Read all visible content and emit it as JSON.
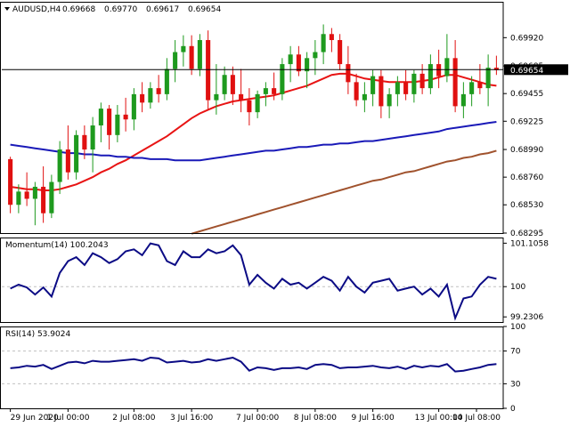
{
  "header": {
    "symbol": "AUDUSD,H4",
    "open": "0.69668",
    "high": "0.69770",
    "low": "0.69617",
    "close": "0.69654"
  },
  "colors": {
    "bull": "#1e9a1e",
    "bear": "#e01010",
    "ma_fast": "#e81414",
    "ma_mid": "#1a1ab8",
    "ma_slow": "#a0522d",
    "oscillator": "#0b0b85",
    "current_price_line": "#000000",
    "grid": "#c0c0c0"
  },
  "chart_data": [
    {
      "type": "candlestick",
      "panel": "price",
      "x_labels": [
        "29 Jun 2020",
        "1 Jul 00:00",
        "2 Jul 08:00",
        "3 Jul 16:00",
        "7 Jul 00:00",
        "8 Jul 08:00",
        "9 Jul 16:00",
        "13 Jul 00:00",
        "14 Jul 08:00"
      ],
      "y_ticks": [
        0.6992,
        0.69685,
        0.69455,
        0.69225,
        0.6899,
        0.6876,
        0.6853,
        0.68295
      ],
      "ylim": [
        0.68295,
        0.701
      ],
      "current_price": 0.69654,
      "current_price_label": "0.69654",
      "ohlc": [
        [
          0.6891,
          0.6893,
          0.6846,
          0.6853
        ],
        [
          0.6853,
          0.687,
          0.6846,
          0.6864
        ],
        [
          0.6864,
          0.688,
          0.6852,
          0.6858
        ],
        [
          0.6858,
          0.6872,
          0.6836,
          0.6868
        ],
        [
          0.6868,
          0.6885,
          0.6838,
          0.6846
        ],
        [
          0.6846,
          0.6878,
          0.6842,
          0.6872
        ],
        [
          0.6872,
          0.6906,
          0.6862,
          0.6899
        ],
        [
          0.6899,
          0.6919,
          0.6874,
          0.688
        ],
        [
          0.688,
          0.6915,
          0.6874,
          0.6911
        ],
        [
          0.6911,
          0.6919,
          0.6891,
          0.6899
        ],
        [
          0.6899,
          0.6926,
          0.688,
          0.6919
        ],
        [
          0.6919,
          0.6938,
          0.6905,
          0.6933
        ],
        [
          0.6933,
          0.6936,
          0.6899,
          0.6911
        ],
        [
          0.6911,
          0.6936,
          0.6905,
          0.6928
        ],
        [
          0.6928,
          0.6942,
          0.6914,
          0.6924
        ],
        [
          0.6924,
          0.695,
          0.6915,
          0.6945
        ],
        [
          0.6945,
          0.6955,
          0.693,
          0.6938
        ],
        [
          0.6938,
          0.6955,
          0.6933,
          0.695
        ],
        [
          0.695,
          0.6961,
          0.6938,
          0.6945
        ],
        [
          0.6945,
          0.6975,
          0.694,
          0.6966
        ],
        [
          0.6966,
          0.699,
          0.6955,
          0.698
        ],
        [
          0.698,
          0.6994,
          0.6968,
          0.6985
        ],
        [
          0.6985,
          0.6994,
          0.6961,
          0.6966
        ],
        [
          0.6966,
          0.6995,
          0.696,
          0.699
        ],
        [
          0.699,
          0.6998,
          0.6932,
          0.694
        ],
        [
          0.694,
          0.697,
          0.6928,
          0.6945
        ],
        [
          0.6945,
          0.6968,
          0.694,
          0.6961
        ],
        [
          0.6961,
          0.6968,
          0.6936,
          0.6945
        ],
        [
          0.6945,
          0.6966,
          0.693,
          0.694
        ],
        [
          0.694,
          0.695,
          0.6919,
          0.693
        ],
        [
          0.693,
          0.6948,
          0.6925,
          0.6945
        ],
        [
          0.6945,
          0.6955,
          0.6935,
          0.695
        ],
        [
          0.695,
          0.6963,
          0.694,
          0.6945
        ],
        [
          0.6945,
          0.6975,
          0.694,
          0.697
        ],
        [
          0.697,
          0.6985,
          0.6955,
          0.6978
        ],
        [
          0.6978,
          0.6985,
          0.696,
          0.6964
        ],
        [
          0.6964,
          0.698,
          0.695,
          0.6975
        ],
        [
          0.6975,
          0.699,
          0.6961,
          0.698
        ],
        [
          0.698,
          0.7003,
          0.697,
          0.6995
        ],
        [
          0.6995,
          0.7,
          0.698,
          0.699
        ],
        [
          0.699,
          0.6995,
          0.6965,
          0.697
        ],
        [
          0.697,
          0.6985,
          0.6945,
          0.6955
        ],
        [
          0.6955,
          0.6962,
          0.6935,
          0.694
        ],
        [
          0.694,
          0.6955,
          0.693,
          0.6945
        ],
        [
          0.6945,
          0.6965,
          0.6935,
          0.696
        ],
        [
          0.696,
          0.6965,
          0.6925,
          0.6935
        ],
        [
          0.6935,
          0.695,
          0.6925,
          0.6945
        ],
        [
          0.6945,
          0.696,
          0.6935,
          0.6955
        ],
        [
          0.6955,
          0.6965,
          0.694,
          0.6945
        ],
        [
          0.6945,
          0.6965,
          0.6938,
          0.6962
        ],
        [
          0.6962,
          0.697,
          0.6945,
          0.695
        ],
        [
          0.695,
          0.6978,
          0.6945,
          0.697
        ],
        [
          0.697,
          0.6982,
          0.695,
          0.696
        ],
        [
          0.696,
          0.6995,
          0.6955,
          0.6975
        ],
        [
          0.6975,
          0.699,
          0.693,
          0.6935
        ],
        [
          0.6935,
          0.6955,
          0.6925,
          0.6945
        ],
        [
          0.6945,
          0.696,
          0.6935,
          0.6955
        ],
        [
          0.6955,
          0.697,
          0.6945,
          0.695
        ],
        [
          0.695,
          0.6978,
          0.6935,
          0.6967
        ],
        [
          0.6967,
          0.6977,
          0.6961,
          0.6965
        ]
      ],
      "series": [
        {
          "color_key": "ma_fast",
          "values": [
            0.6868,
            0.6867,
            0.6866,
            0.6866,
            0.6865,
            0.6865,
            0.6866,
            0.6868,
            0.687,
            0.6873,
            0.6876,
            0.688,
            0.6883,
            0.6887,
            0.689,
            0.6894,
            0.6898,
            0.6902,
            0.6906,
            0.691,
            0.6915,
            0.692,
            0.6925,
            0.6929,
            0.6932,
            0.6935,
            0.6937,
            0.6939,
            0.694,
            0.6941,
            0.6942,
            0.6943,
            0.6944,
            0.6946,
            0.6948,
            0.695,
            0.6952,
            0.6955,
            0.6958,
            0.6961,
            0.6962,
            0.6962,
            0.696,
            0.6958,
            0.6957,
            0.6956,
            0.6955,
            0.6955,
            0.6955,
            0.6955,
            0.6956,
            0.6957,
            0.6959,
            0.6961,
            0.6961,
            0.6959,
            0.6957,
            0.6955,
            0.6953,
            0.6952
          ]
        },
        {
          "color_key": "ma_mid",
          "values": [
            0.6903,
            0.6902,
            0.6901,
            0.69,
            0.6899,
            0.6898,
            0.6897,
            0.6896,
            0.6896,
            0.6895,
            0.6895,
            0.6894,
            0.6894,
            0.6893,
            0.6893,
            0.6892,
            0.6892,
            0.6891,
            0.6891,
            0.6891,
            0.689,
            0.689,
            0.689,
            0.689,
            0.6891,
            0.6892,
            0.6893,
            0.6894,
            0.6895,
            0.6896,
            0.6897,
            0.6898,
            0.6898,
            0.6899,
            0.69,
            0.6901,
            0.6901,
            0.6902,
            0.6903,
            0.6903,
            0.6904,
            0.6904,
            0.6905,
            0.6906,
            0.6906,
            0.6907,
            0.6908,
            0.6909,
            0.691,
            0.6911,
            0.6912,
            0.6913,
            0.6914,
            0.6916,
            0.6917,
            0.6918,
            0.6919,
            0.692,
            0.6921,
            0.6922
          ]
        },
        {
          "color_key": "ma_slow",
          "values": [
            null,
            null,
            null,
            null,
            null,
            null,
            null,
            null,
            null,
            null,
            null,
            null,
            null,
            null,
            null,
            null,
            null,
            null,
            null,
            null,
            null,
            null,
            0.6829,
            0.6831,
            0.6833,
            0.6835,
            0.6837,
            0.6839,
            0.6841,
            0.6843,
            0.6845,
            0.6847,
            0.6849,
            0.6851,
            0.6853,
            0.6855,
            0.6857,
            0.6859,
            0.6861,
            0.6863,
            0.6865,
            0.6867,
            0.6869,
            0.6871,
            0.6873,
            0.6874,
            0.6876,
            0.6878,
            0.688,
            0.6881,
            0.6883,
            0.6885,
            0.6887,
            0.6889,
            0.689,
            0.6892,
            0.6893,
            0.6895,
            0.6896,
            0.6898
          ]
        }
      ]
    },
    {
      "type": "line",
      "panel": "momentum",
      "title": "Momentum(14) 100.2043",
      "y_ticks": [
        101.1058,
        100,
        99.2306
      ],
      "ylim": [
        99.1,
        101.25
      ],
      "series": [
        {
          "color_key": "oscillator",
          "values": [
            99.95,
            100.05,
            99.98,
            99.8,
            99.98,
            99.75,
            100.35,
            100.65,
            100.75,
            100.55,
            100.85,
            100.75,
            100.6,
            100.7,
            100.9,
            100.95,
            100.8,
            101.1,
            101.05,
            100.65,
            100.55,
            100.9,
            100.75,
            100.75,
            100.95,
            100.85,
            100.9,
            101.05,
            100.8,
            100.05,
            100.3,
            100.1,
            99.95,
            100.2,
            100.05,
            100.1,
            99.95,
            100.1,
            100.25,
            100.15,
            99.9,
            100.25,
            100.0,
            99.85,
            100.1,
            100.15,
            100.2,
            99.9,
            99.95,
            100.0,
            99.8,
            99.95,
            99.75,
            100.05,
            99.2,
            99.7,
            99.75,
            100.05,
            100.25,
            100.2
          ]
        }
      ]
    },
    {
      "type": "line",
      "panel": "rsi",
      "title": "RSI(14) 53.9024",
      "y_ticks": [
        100,
        70,
        30,
        0
      ],
      "ylim": [
        0,
        100
      ],
      "levels": [
        70,
        30
      ],
      "series": [
        {
          "color_key": "oscillator",
          "values": [
            49,
            50,
            52,
            51,
            53,
            48,
            52,
            56,
            57,
            55,
            58,
            57,
            57,
            58,
            59,
            60,
            58,
            62,
            61,
            56,
            57,
            58,
            56,
            57,
            60,
            58,
            60,
            62,
            57,
            46,
            50,
            49,
            47,
            49,
            49,
            50,
            48,
            53,
            54,
            53,
            49,
            50,
            50,
            51,
            52,
            50,
            49,
            51,
            48,
            52,
            50,
            52,
            51,
            54,
            45,
            46,
            48,
            50,
            53,
            54
          ]
        }
      ]
    }
  ]
}
